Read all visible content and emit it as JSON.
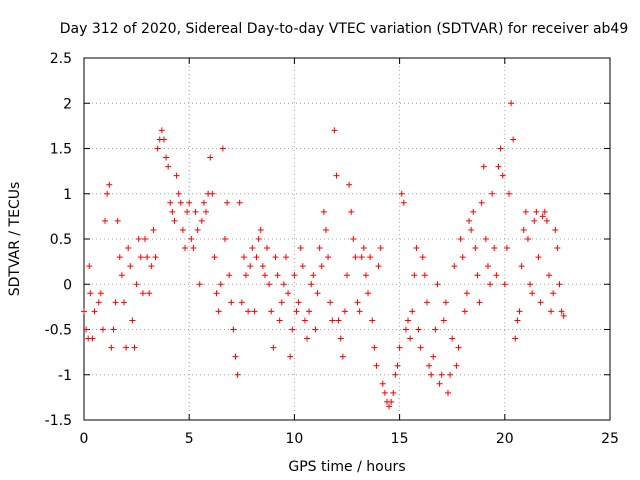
{
  "chart_data": {
    "type": "scatter",
    "title": "Day 312 of 2020, Sidereal Day-to-day VTEC variation (SDTVAR) for receiver ab49",
    "xlabel": "GPS time / hours",
    "ylabel": "SDTVAR / TECUs",
    "xlim": [
      0,
      25
    ],
    "ylim": [
      -1.5,
      2.5
    ],
    "x_ticks": [
      0,
      5,
      10,
      15,
      20,
      25
    ],
    "x_tick_labels": [
      "0",
      "5",
      "10",
      "15",
      "20",
      "25"
    ],
    "y_ticks": [
      -1.5,
      -1,
      -0.5,
      0,
      0.5,
      1,
      1.5,
      2,
      2.5
    ],
    "y_tick_labels": [
      "-1.5",
      "-1",
      "-0.5",
      "0",
      "0.5",
      "1",
      "1.5",
      "2",
      "2.5"
    ],
    "grid": true,
    "marker": "+",
    "color": "#ff0000",
    "series": [
      {
        "name": "SDTVAR",
        "points": [
          [
            0.0,
            -0.3
          ],
          [
            0.1,
            -0.5
          ],
          [
            0.2,
            -0.6
          ],
          [
            0.25,
            0.2
          ],
          [
            0.3,
            -0.1
          ],
          [
            0.4,
            -0.6
          ],
          [
            0.5,
            -0.3
          ],
          [
            0.7,
            -0.2
          ],
          [
            0.8,
            -0.1
          ],
          [
            0.9,
            -0.5
          ],
          [
            1.0,
            0.7
          ],
          [
            1.1,
            1.0
          ],
          [
            1.2,
            1.1
          ],
          [
            1.3,
            -0.7
          ],
          [
            1.4,
            -0.5
          ],
          [
            1.5,
            -0.2
          ],
          [
            1.6,
            0.7
          ],
          [
            1.7,
            0.3
          ],
          [
            1.8,
            0.1
          ],
          [
            1.9,
            -0.2
          ],
          [
            2.0,
            -0.7
          ],
          [
            2.1,
            0.4
          ],
          [
            2.2,
            0.2
          ],
          [
            2.3,
            -0.4
          ],
          [
            2.4,
            -0.7
          ],
          [
            2.5,
            0.0
          ],
          [
            2.6,
            0.5
          ],
          [
            2.7,
            0.3
          ],
          [
            2.8,
            -0.1
          ],
          [
            2.9,
            0.5
          ],
          [
            3.0,
            0.3
          ],
          [
            3.1,
            -0.1
          ],
          [
            3.2,
            0.2
          ],
          [
            3.3,
            0.6
          ],
          [
            3.4,
            0.3
          ],
          [
            3.5,
            1.5
          ],
          [
            3.6,
            1.6
          ],
          [
            3.7,
            1.7
          ],
          [
            3.8,
            1.6
          ],
          [
            3.9,
            1.4
          ],
          [
            4.0,
            1.3
          ],
          [
            4.1,
            0.9
          ],
          [
            4.2,
            0.8
          ],
          [
            4.3,
            0.7
          ],
          [
            4.4,
            1.2
          ],
          [
            4.5,
            1.0
          ],
          [
            4.6,
            0.9
          ],
          [
            4.7,
            0.6
          ],
          [
            4.8,
            0.4
          ],
          [
            4.9,
            0.8
          ],
          [
            5.0,
            0.9
          ],
          [
            5.1,
            0.5
          ],
          [
            5.2,
            0.4
          ],
          [
            5.3,
            0.8
          ],
          [
            5.4,
            0.6
          ],
          [
            5.5,
            0.0
          ],
          [
            5.6,
            0.7
          ],
          [
            5.7,
            0.9
          ],
          [
            5.8,
            0.8
          ],
          [
            5.9,
            1.0
          ],
          [
            6.0,
            1.4
          ],
          [
            6.1,
            1.0
          ],
          [
            6.2,
            0.3
          ],
          [
            6.3,
            -0.1
          ],
          [
            6.4,
            -0.3
          ],
          [
            6.5,
            0.0
          ],
          [
            6.6,
            1.5
          ],
          [
            6.7,
            0.5
          ],
          [
            6.8,
            0.9
          ],
          [
            6.9,
            0.1
          ],
          [
            7.0,
            -0.2
          ],
          [
            7.1,
            -0.5
          ],
          [
            7.2,
            -0.8
          ],
          [
            7.3,
            -1.0
          ],
          [
            7.4,
            0.9
          ],
          [
            7.5,
            -0.2
          ],
          [
            7.6,
            0.3
          ],
          [
            7.7,
            0.1
          ],
          [
            7.8,
            -0.3
          ],
          [
            7.9,
            0.2
          ],
          [
            8.0,
            0.4
          ],
          [
            8.1,
            -0.3
          ],
          [
            8.2,
            0.3
          ],
          [
            8.3,
            0.5
          ],
          [
            8.4,
            0.6
          ],
          [
            8.5,
            0.2
          ],
          [
            8.6,
            0.1
          ],
          [
            8.7,
            0.4
          ],
          [
            8.8,
            0.0
          ],
          [
            8.9,
            -0.3
          ],
          [
            9.0,
            -0.7
          ],
          [
            9.1,
            0.3
          ],
          [
            9.2,
            0.1
          ],
          [
            9.3,
            -0.4
          ],
          [
            9.4,
            -0.2
          ],
          [
            9.5,
            0.0
          ],
          [
            9.6,
            0.3
          ],
          [
            9.7,
            -0.1
          ],
          [
            9.8,
            -0.8
          ],
          [
            9.9,
            -0.5
          ],
          [
            10.0,
            0.1
          ],
          [
            10.1,
            -0.3
          ],
          [
            10.2,
            -0.2
          ],
          [
            10.3,
            0.4
          ],
          [
            10.4,
            0.2
          ],
          [
            10.5,
            -0.4
          ],
          [
            10.6,
            -0.6
          ],
          [
            10.7,
            -0.3
          ],
          [
            10.8,
            0.0
          ],
          [
            10.9,
            0.1
          ],
          [
            11.0,
            -0.5
          ],
          [
            11.1,
            -0.1
          ],
          [
            11.2,
            0.4
          ],
          [
            11.3,
            0.2
          ],
          [
            11.4,
            0.8
          ],
          [
            11.5,
            0.6
          ],
          [
            11.6,
            0.3
          ],
          [
            11.7,
            -0.2
          ],
          [
            11.8,
            -0.4
          ],
          [
            11.9,
            1.7
          ],
          [
            12.0,
            1.2
          ],
          [
            12.1,
            -0.4
          ],
          [
            12.2,
            -0.6
          ],
          [
            12.3,
            -0.8
          ],
          [
            12.4,
            -0.3
          ],
          [
            12.5,
            0.1
          ],
          [
            12.6,
            1.1
          ],
          [
            12.7,
            0.8
          ],
          [
            12.8,
            0.5
          ],
          [
            12.9,
            0.3
          ],
          [
            13.0,
            -0.2
          ],
          [
            13.1,
            -0.3
          ],
          [
            13.2,
            0.3
          ],
          [
            13.3,
            0.4
          ],
          [
            13.4,
            0.1
          ],
          [
            13.5,
            -0.1
          ],
          [
            13.6,
            0.3
          ],
          [
            13.7,
            -0.4
          ],
          [
            13.8,
            -0.7
          ],
          [
            13.9,
            -0.9
          ],
          [
            14.0,
            0.2
          ],
          [
            14.1,
            0.4
          ],
          [
            14.2,
            -1.1
          ],
          [
            14.3,
            -1.2
          ],
          [
            14.4,
            -1.3
          ],
          [
            14.5,
            -1.35
          ],
          [
            14.6,
            -1.3
          ],
          [
            14.7,
            -1.2
          ],
          [
            14.8,
            -1.0
          ],
          [
            14.9,
            -0.9
          ],
          [
            15.0,
            -0.7
          ],
          [
            15.1,
            1.0
          ],
          [
            15.2,
            0.9
          ],
          [
            15.3,
            -0.5
          ],
          [
            15.4,
            -0.4
          ],
          [
            15.5,
            -0.6
          ],
          [
            15.6,
            -0.3
          ],
          [
            15.7,
            0.1
          ],
          [
            15.8,
            0.4
          ],
          [
            15.9,
            -0.5
          ],
          [
            16.0,
            -0.7
          ],
          [
            16.1,
            0.3
          ],
          [
            16.2,
            0.1
          ],
          [
            16.3,
            -0.2
          ],
          [
            16.4,
            -0.9
          ],
          [
            16.5,
            -1.0
          ],
          [
            16.6,
            -0.8
          ],
          [
            16.7,
            -0.5
          ],
          [
            16.8,
            0.0
          ],
          [
            16.9,
            -1.1
          ],
          [
            17.0,
            -1.0
          ],
          [
            17.1,
            -0.4
          ],
          [
            17.2,
            -0.2
          ],
          [
            17.3,
            -1.2
          ],
          [
            17.4,
            -1.0
          ],
          [
            17.5,
            -0.6
          ],
          [
            17.6,
            0.2
          ],
          [
            17.7,
            -0.9
          ],
          [
            17.8,
            -0.7
          ],
          [
            17.9,
            0.5
          ],
          [
            18.0,
            0.3
          ],
          [
            18.1,
            -0.3
          ],
          [
            18.2,
            -0.1
          ],
          [
            18.3,
            0.7
          ],
          [
            18.4,
            0.6
          ],
          [
            18.5,
            0.8
          ],
          [
            18.6,
            0.4
          ],
          [
            18.7,
            0.1
          ],
          [
            18.8,
            -0.2
          ],
          [
            18.9,
            0.9
          ],
          [
            19.0,
            1.3
          ],
          [
            19.1,
            0.5
          ],
          [
            19.2,
            0.2
          ],
          [
            19.3,
            0.0
          ],
          [
            19.4,
            1.0
          ],
          [
            19.5,
            0.4
          ],
          [
            19.6,
            0.1
          ],
          [
            19.7,
            1.3
          ],
          [
            19.8,
            1.5
          ],
          [
            19.9,
            1.2
          ],
          [
            20.0,
            0.0
          ],
          [
            20.1,
            0.4
          ],
          [
            20.2,
            1.0
          ],
          [
            20.3,
            2.0
          ],
          [
            20.4,
            1.6
          ],
          [
            20.5,
            -0.6
          ],
          [
            20.6,
            -0.4
          ],
          [
            20.7,
            -0.3
          ],
          [
            20.8,
            0.2
          ],
          [
            20.9,
            0.6
          ],
          [
            21.0,
            0.8
          ],
          [
            21.1,
            0.5
          ],
          [
            21.2,
            0.0
          ],
          [
            21.3,
            -0.1
          ],
          [
            21.4,
            0.7
          ],
          [
            21.5,
            0.8
          ],
          [
            21.6,
            0.3
          ],
          [
            21.7,
            -0.2
          ],
          [
            21.8,
            0.75
          ],
          [
            21.9,
            0.8
          ],
          [
            22.0,
            0.7
          ],
          [
            22.1,
            0.1
          ],
          [
            22.2,
            -0.3
          ],
          [
            22.3,
            -0.1
          ],
          [
            22.4,
            0.6
          ],
          [
            22.5,
            0.4
          ],
          [
            22.6,
            0.0
          ],
          [
            22.7,
            -0.3
          ],
          [
            22.8,
            -0.35
          ]
        ]
      }
    ]
  }
}
